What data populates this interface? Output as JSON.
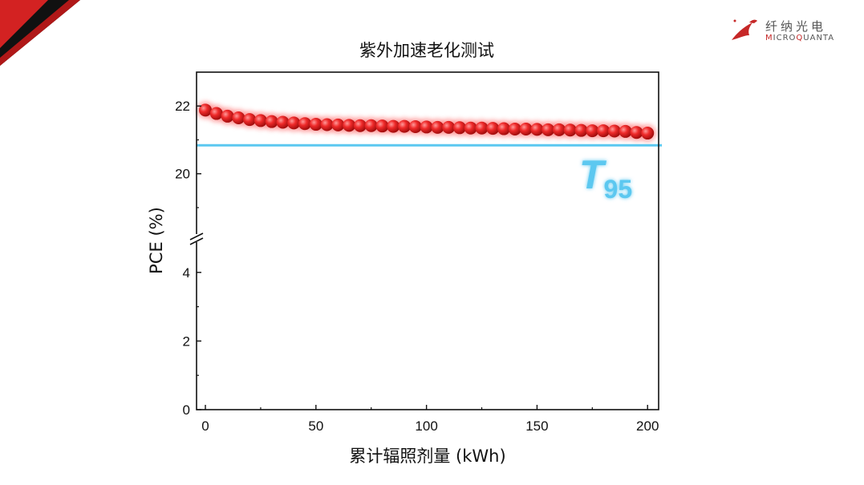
{
  "logo": {
    "cn_text": "纤纳光电",
    "en_text_first": "M",
    "en_text_mid": "ICRO",
    "en_text_q": "Q",
    "en_text_rest": "UANTA",
    "accent": "#c62828"
  },
  "chart_data": {
    "type": "scatter",
    "title": "紫外加速老化测试",
    "xlabel": "累计辐照剂量 (kWh)",
    "ylabel": "PCE (%)",
    "xlim": [
      -4,
      205
    ],
    "x_ticks": [
      0,
      50,
      100,
      150,
      200
    ],
    "y_ticks_lower": [
      0,
      2,
      4
    ],
    "y_ticks_upper": [
      20,
      22
    ],
    "ylim_lower": [
      0,
      5
    ],
    "ylim_upper": [
      18.1,
      23
    ],
    "axis_break": true,
    "grid": false,
    "series": [
      {
        "color": "#e02020",
        "x": [
          0,
          5,
          10,
          15,
          20,
          25,
          30,
          35,
          40,
          45,
          50,
          55,
          60,
          65,
          70,
          75,
          80,
          85,
          90,
          95,
          100,
          105,
          110,
          115,
          120,
          125,
          130,
          135,
          140,
          145,
          150,
          155,
          160,
          165,
          170,
          175,
          180,
          185,
          190,
          195,
          200
        ],
        "y": [
          21.88,
          21.78,
          21.7,
          21.65,
          21.6,
          21.57,
          21.54,
          21.52,
          21.5,
          21.48,
          21.46,
          21.45,
          21.44,
          21.43,
          21.42,
          21.42,
          21.41,
          21.4,
          21.4,
          21.39,
          21.38,
          21.37,
          21.37,
          21.36,
          21.35,
          21.35,
          21.34,
          21.33,
          21.32,
          21.32,
          21.31,
          21.3,
          21.3,
          21.29,
          21.28,
          21.27,
          21.27,
          21.26,
          21.25,
          21.22,
          21.2
        ]
      }
    ],
    "reference_line": {
      "y": 20.84,
      "color": "#5bc8f0",
      "label_main": "T",
      "label_sub": "95"
    }
  }
}
